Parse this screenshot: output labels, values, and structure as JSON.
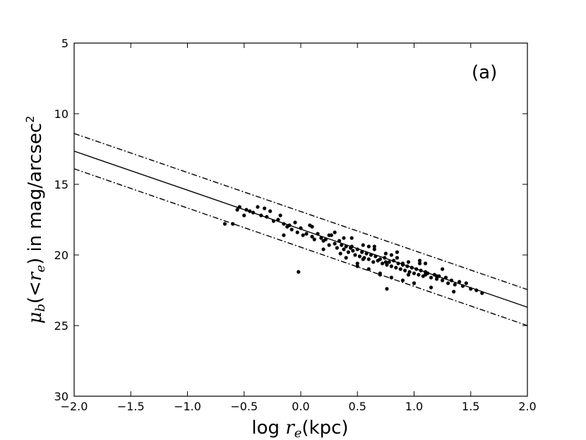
{
  "chart_data": {
    "type": "scatter",
    "title": "",
    "annotation": "(a)",
    "xlabel": "log r_e(kpc)",
    "ylabel": "μ_b(<r_e) in mag/arcsec^2",
    "xlim": [
      -2.0,
      2.0
    ],
    "ylim": [
      30,
      5
    ],
    "y_inverted": true,
    "grid": false,
    "x_ticks": [
      "−2.0",
      "−1.5",
      "−1.0",
      "−0.5",
      "0.0",
      "0.5",
      "1.0",
      "1.5",
      "2.0"
    ],
    "x_tick_values": [
      -2.0,
      -1.5,
      -1.0,
      -0.5,
      0.0,
      0.5,
      1.0,
      1.5,
      2.0
    ],
    "y_ticks": [
      "5",
      "10",
      "15",
      "20",
      "25",
      "30"
    ],
    "y_tick_values": [
      5,
      10,
      15,
      20,
      25,
      30
    ],
    "fit_line": {
      "style": "solid",
      "x": [
        -2.0,
        2.0
      ],
      "y": [
        12.65,
        23.7
      ]
    },
    "upper_bound": {
      "style": "dashdot",
      "x": [
        -2.0,
        2.0
      ],
      "y": [
        11.4,
        22.45
      ]
    },
    "lower_bound": {
      "style": "dashdot",
      "x": [
        -2.0,
        2.0
      ],
      "y": [
        13.9,
        25.0
      ]
    },
    "points": {
      "x": [
        -0.67,
        -0.6,
        -0.56,
        -0.54,
        -0.5,
        -0.48,
        -0.45,
        -0.42,
        -0.38,
        -0.35,
        -0.32,
        -0.3,
        -0.27,
        -0.24,
        -0.2,
        -0.18,
        -0.15,
        -0.12,
        -0.1,
        -0.08,
        -0.05,
        -0.03,
        0.0,
        0.02,
        0.05,
        0.08,
        0.1,
        0.12,
        0.15,
        0.18,
        0.2,
        0.22,
        0.25,
        0.27,
        0.3,
        0.32,
        0.34,
        0.36,
        0.38,
        0.4,
        0.42,
        0.44,
        0.46,
        0.48,
        0.5,
        0.52,
        0.54,
        0.56,
        0.58,
        0.6,
        0.62,
        0.64,
        0.66,
        0.68,
        0.7,
        0.72,
        0.74,
        0.76,
        0.78,
        0.8,
        0.82,
        0.84,
        0.86,
        0.88,
        0.9,
        0.92,
        0.94,
        0.96,
        0.98,
        1.0,
        1.02,
        1.04,
        1.06,
        1.08,
        1.1,
        1.12,
        1.15,
        1.18,
        1.2,
        1.22,
        1.25,
        1.28,
        1.3,
        1.33,
        1.36,
        1.4,
        1.43,
        1.46,
        1.5,
        1.55,
        1.6,
        0.38,
        0.45,
        0.5,
        0.55,
        0.6,
        0.65,
        0.7,
        0.75,
        0.8,
        0.85,
        0.9,
        0.95,
        1.0,
        1.05,
        1.1,
        0.2,
        0.3,
        0.4,
        0.5,
        0.6,
        0.7,
        0.8,
        0.9,
        1.0,
        1.1,
        1.2,
        0.25,
        0.35,
        0.45,
        0.55,
        0.65,
        0.75,
        0.85,
        0.95,
        1.05,
        1.15,
        1.25,
        1.35,
        -0.02,
        0.76,
        -0.15,
        0.1
      ],
      "y": [
        17.8,
        17.8,
        16.8,
        16.6,
        17.2,
        16.8,
        16.9,
        17.0,
        16.6,
        17.2,
        16.7,
        17.3,
        16.9,
        17.6,
        17.5,
        17.2,
        17.8,
        18.0,
        17.9,
        18.2,
        17.7,
        18.4,
        18.1,
        18.6,
        18.5,
        17.9,
        18.7,
        18.9,
        18.5,
        18.8,
        19.0,
        18.9,
        19.3,
        18.6,
        19.2,
        19.5,
        19.0,
        19.3,
        19.6,
        19.4,
        19.8,
        19.5,
        19.7,
        20.0,
        19.6,
        20.1,
        19.8,
        20.2,
        19.9,
        20.3,
        20.0,
        20.5,
        20.1,
        20.4,
        20.3,
        20.6,
        20.2,
        20.7,
        20.5,
        20.8,
        20.4,
        20.9,
        20.6,
        21.0,
        20.7,
        21.1,
        20.8,
        21.2,
        20.9,
        21.3,
        21.0,
        21.4,
        21.1,
        21.5,
        21.2,
        21.3,
        21.6,
        21.4,
        21.7,
        21.5,
        21.8,
        21.6,
        22.0,
        21.8,
        22.1,
        21.9,
        22.2,
        22.0,
        22.4,
        22.5,
        22.7,
        18.8,
        19.4,
        20.6,
        19.3,
        21.0,
        19.6,
        21.3,
        19.9,
        21.6,
        20.2,
        21.8,
        20.5,
        22.0,
        20.6,
        21.4,
        19.6,
        18.4,
        20.2,
        20.8,
        19.4,
        21.4,
        20.0,
        20.6,
        22.0,
        20.6,
        21.5,
        18.6,
        19.9,
        18.8,
        20.3,
        19.4,
        20.5,
        19.8,
        21.4,
        20.4,
        22.3,
        21.0,
        22.6,
        21.2,
        22.4,
        18.6,
        18.0
      ]
    }
  }
}
